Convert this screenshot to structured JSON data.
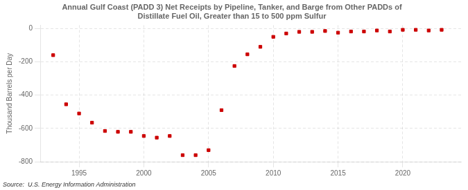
{
  "chart_data": {
    "type": "scatter",
    "title": "Annual Gulf Coast (PADD 3) Net Receipts by Pipeline, Tanker, and Barge from Other PADDs of\nDistillate Fuel Oil, Greater than 15 to 500 ppm Sulfur",
    "ylabel": "Thousand Barrels per Day",
    "annotations": [
      "Source:  U.S. Energy Information Administration"
    ],
    "x": [
      1993,
      1994,
      1995,
      1996,
      1997,
      1998,
      1999,
      2000,
      2001,
      2002,
      2003,
      2004,
      2005,
      2006,
      2007,
      2008,
      2009,
      2010,
      2011,
      2012,
      2013,
      2014,
      2015,
      2016,
      2017,
      2018,
      2019,
      2020,
      2021,
      2022,
      2023
    ],
    "values": [
      -160,
      -455,
      -510,
      -565,
      -615,
      -620,
      -620,
      -645,
      -655,
      -645,
      -760,
      -760,
      -730,
      -490,
      -225,
      -155,
      -110,
      -50,
      -30,
      -20,
      -20,
      -15,
      -25,
      -18,
      -18,
      -12,
      -18,
      -8,
      -8,
      -12,
      -8
    ],
    "color": "#cc0000",
    "marker": "square",
    "grid": true,
    "xlim": [
      1992.0,
      2024.5
    ],
    "xticks": [
      1995,
      2000,
      2005,
      2010,
      2015,
      2020
    ],
    "ylim": [
      -800,
      20
    ],
    "yticks": [
      0,
      -200,
      -400,
      -600,
      -800
    ]
  }
}
